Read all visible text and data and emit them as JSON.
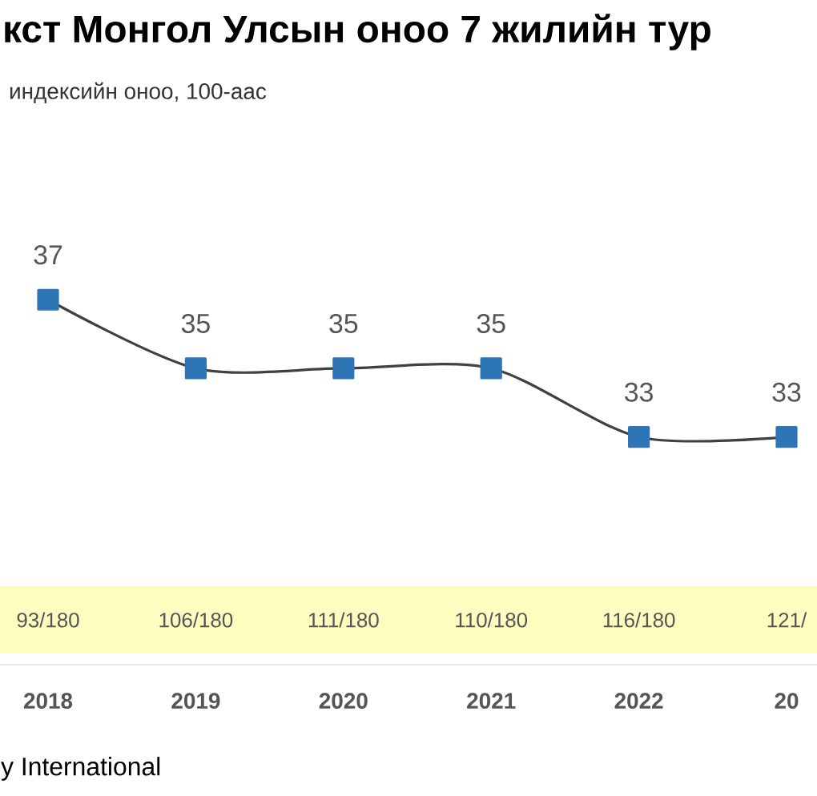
{
  "chart_data": {
    "type": "line",
    "title": "кст Монгол Улсын оноо 7 жилийн тур",
    "subtitle": "индексийн оноо, 100-аас",
    "categories": [
      "2018",
      "2019",
      "2020",
      "2021",
      "2022",
      "20"
    ],
    "values": [
      37,
      35,
      35,
      35,
      33,
      33
    ],
    "color": "#2e75b6",
    "marker": "square",
    "line_style": "solid",
    "data_labels": true,
    "annotations": [
      "93/180",
      "106/180",
      "111/180",
      "110/180",
      "116/180",
      "121/",
      "y International"
    ]
  }
}
